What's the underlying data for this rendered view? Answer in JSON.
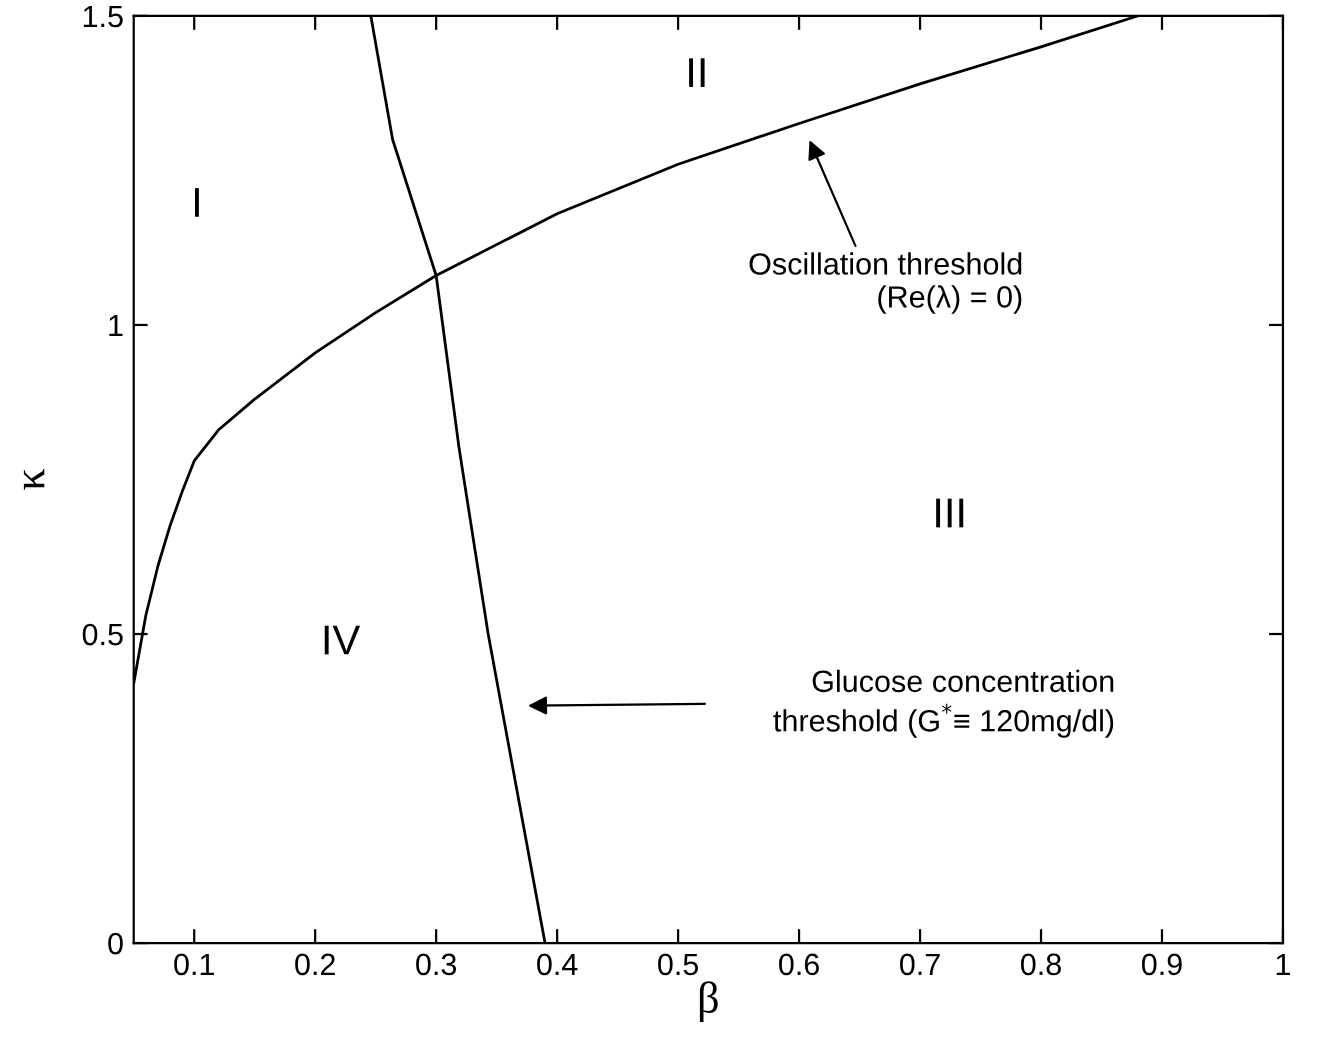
{
  "chart_data": {
    "type": "line",
    "xlabel": "β",
    "ylabel": "κ",
    "xlim": [
      0.05,
      1
    ],
    "ylim": [
      0,
      1.5
    ],
    "xticks": [
      0.1,
      0.2,
      0.3,
      0.4,
      0.5,
      0.6,
      0.7,
      0.8,
      0.9,
      1
    ],
    "yticks": [
      0,
      0.5,
      1,
      1.5
    ],
    "grid": false,
    "marker": "none",
    "line_style": "solid",
    "series": [
      {
        "color": "#000000",
        "x": [
          0.05,
          0.06,
          0.07,
          0.08,
          0.09,
          0.1,
          0.12,
          0.15,
          0.2,
          0.25,
          0.3,
          0.4,
          0.5,
          0.6,
          0.7,
          0.8,
          0.88
        ],
        "values": [
          0.42,
          0.53,
          0.61,
          0.675,
          0.73,
          0.78,
          0.83,
          0.88,
          0.955,
          1.02,
          1.08,
          1.18,
          1.26,
          1.326,
          1.39,
          1.45,
          1.5
        ]
      },
      {
        "color": "#000000",
        "x": [
          0.246,
          0.264,
          0.3,
          0.319,
          0.343,
          0.39
        ],
        "values": [
          1.5,
          1.3,
          1.08,
          0.8,
          0.5,
          0
        ]
      }
    ],
    "annotations": [
      "I",
      "II",
      "III",
      "IV",
      "Oscillation threshold\n(Re(λ) = 0)",
      "Glucose concentration\nthreshold (G$^{*}$≡ 120mg/dl)"
    ]
  }
}
